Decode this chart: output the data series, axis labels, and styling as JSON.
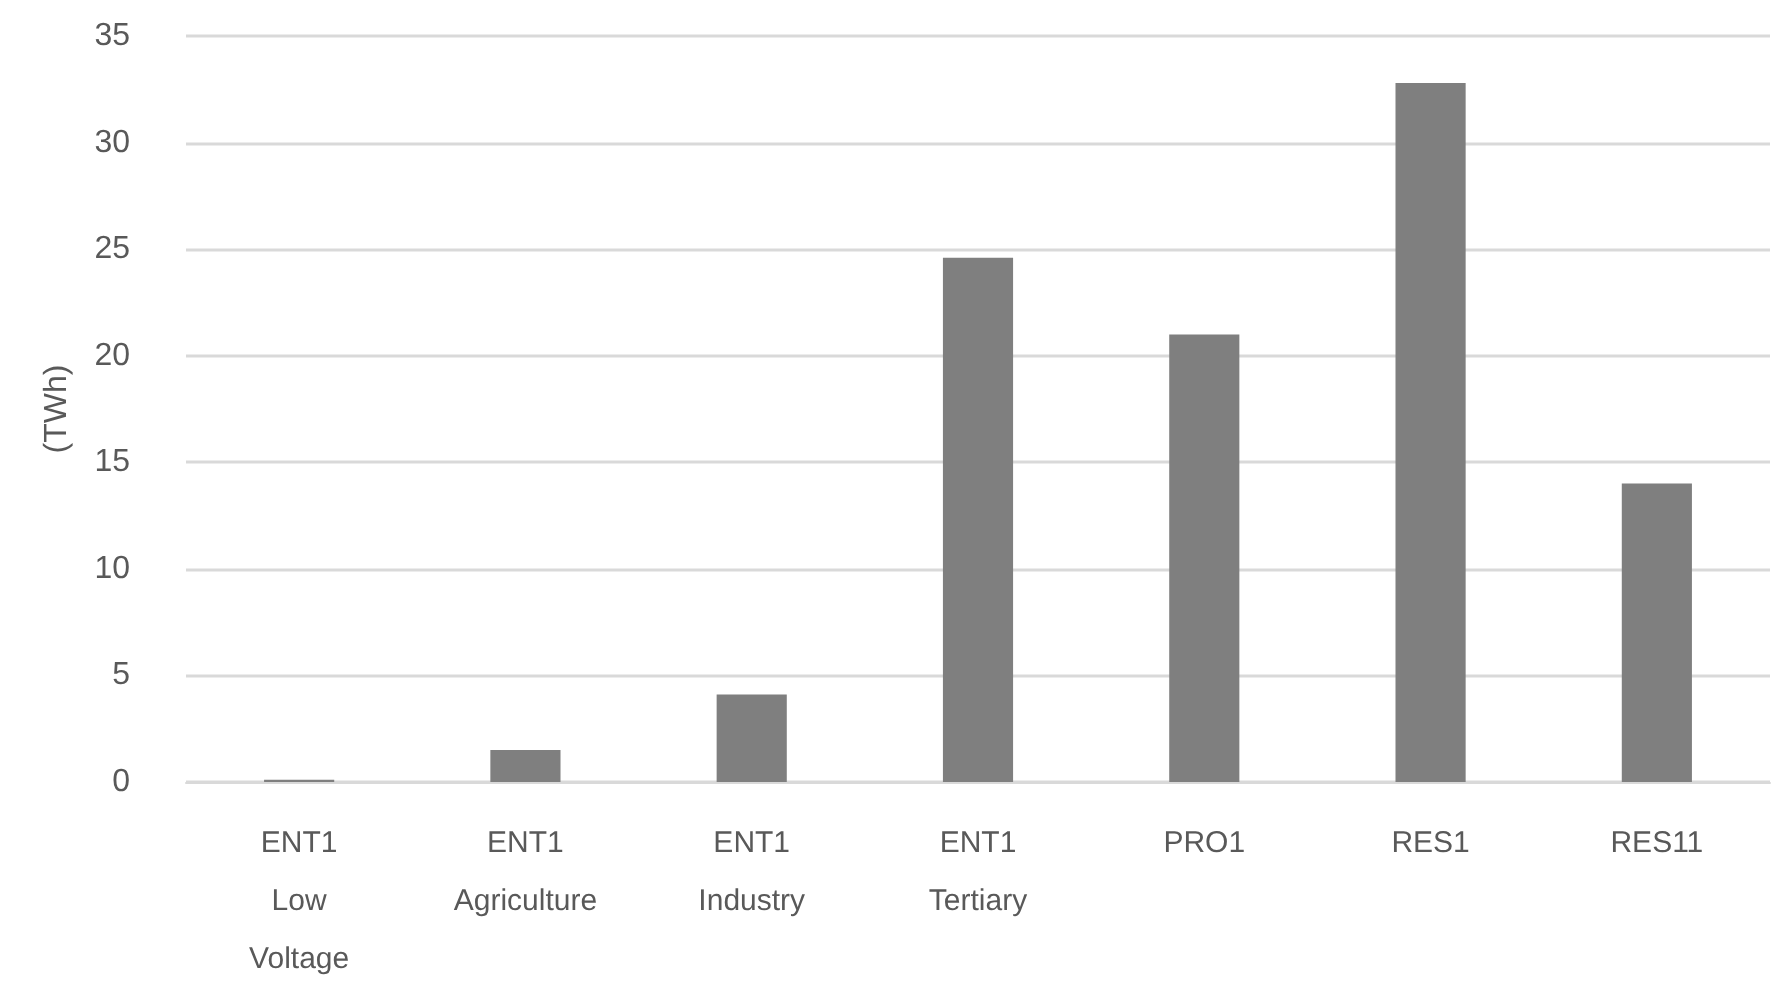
{
  "chart_data": {
    "type": "bar",
    "ylabel": "(TWh)",
    "categories": [
      "ENT1 Low Voltage",
      "ENT1 Agriculture",
      "ENT1 Industry",
      "ENT1 Tertiary",
      "PRO1",
      "RES1",
      "RES11"
    ],
    "values": [
      0.1,
      1.5,
      4.1,
      24.6,
      21.0,
      32.8,
      14.0
    ],
    "color": "#7f7f7f",
    "ylim": [
      0,
      35
    ],
    "yticks": [
      0,
      5,
      10,
      15,
      20,
      25,
      30,
      35
    ],
    "grid": "y"
  }
}
